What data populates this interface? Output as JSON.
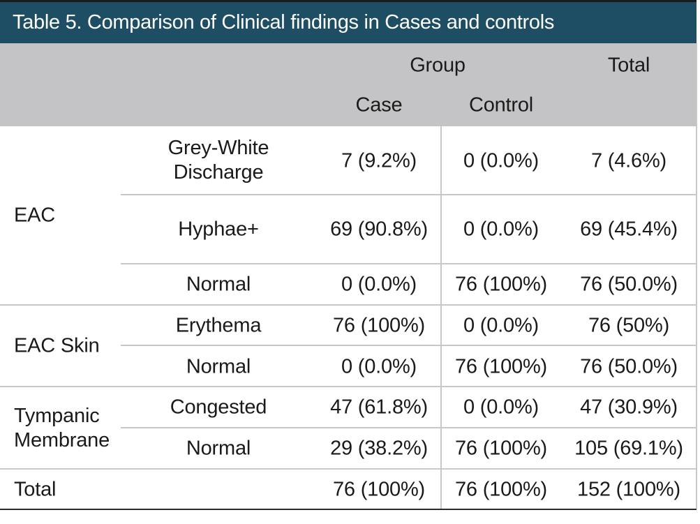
{
  "title": "Table 5. Comparison of Clinical findings in Cases and controls",
  "header": {
    "group": "Group",
    "total": "Total",
    "case": "Case",
    "control": "Control"
  },
  "rows": [
    {
      "category": "EAC",
      "finding": "Grey-White Discharge",
      "case": "7 (9.2%)",
      "control": "0 (0.0%)",
      "total": "7 (4.6%)"
    },
    {
      "category": "",
      "finding": "Hyphae+",
      "case": "69 (90.8%)",
      "control": "0 (0.0%)",
      "total": "69 (45.4%)"
    },
    {
      "category": "",
      "finding": "Normal",
      "case": "0 (0.0%)",
      "control": "76 (100%)",
      "total": "76 (50.0%)"
    },
    {
      "category": "EAC Skin",
      "finding": "Erythema",
      "case": "76 (100%)",
      "control": "0 (0.0%)",
      "total": "76 (50%)"
    },
    {
      "category": "",
      "finding": "Normal",
      "case": "0 (0.0%)",
      "control": "76 (100%)",
      "total": "76 (50.0%)"
    },
    {
      "category": "Tympanic Membrane",
      "finding": "Congested",
      "case": "47 (61.8%)",
      "control": "0 (0.0%)",
      "total": "47 (30.9%)"
    },
    {
      "category": "",
      "finding": "Normal",
      "case": "29 (38.2%)",
      "control": "76 (100%)",
      "total": "105 (69.1%)"
    }
  ],
  "total_row": {
    "label": "Total",
    "case": "76 (100%)",
    "control": "76 (100%)",
    "total": "152 (100%)"
  }
}
